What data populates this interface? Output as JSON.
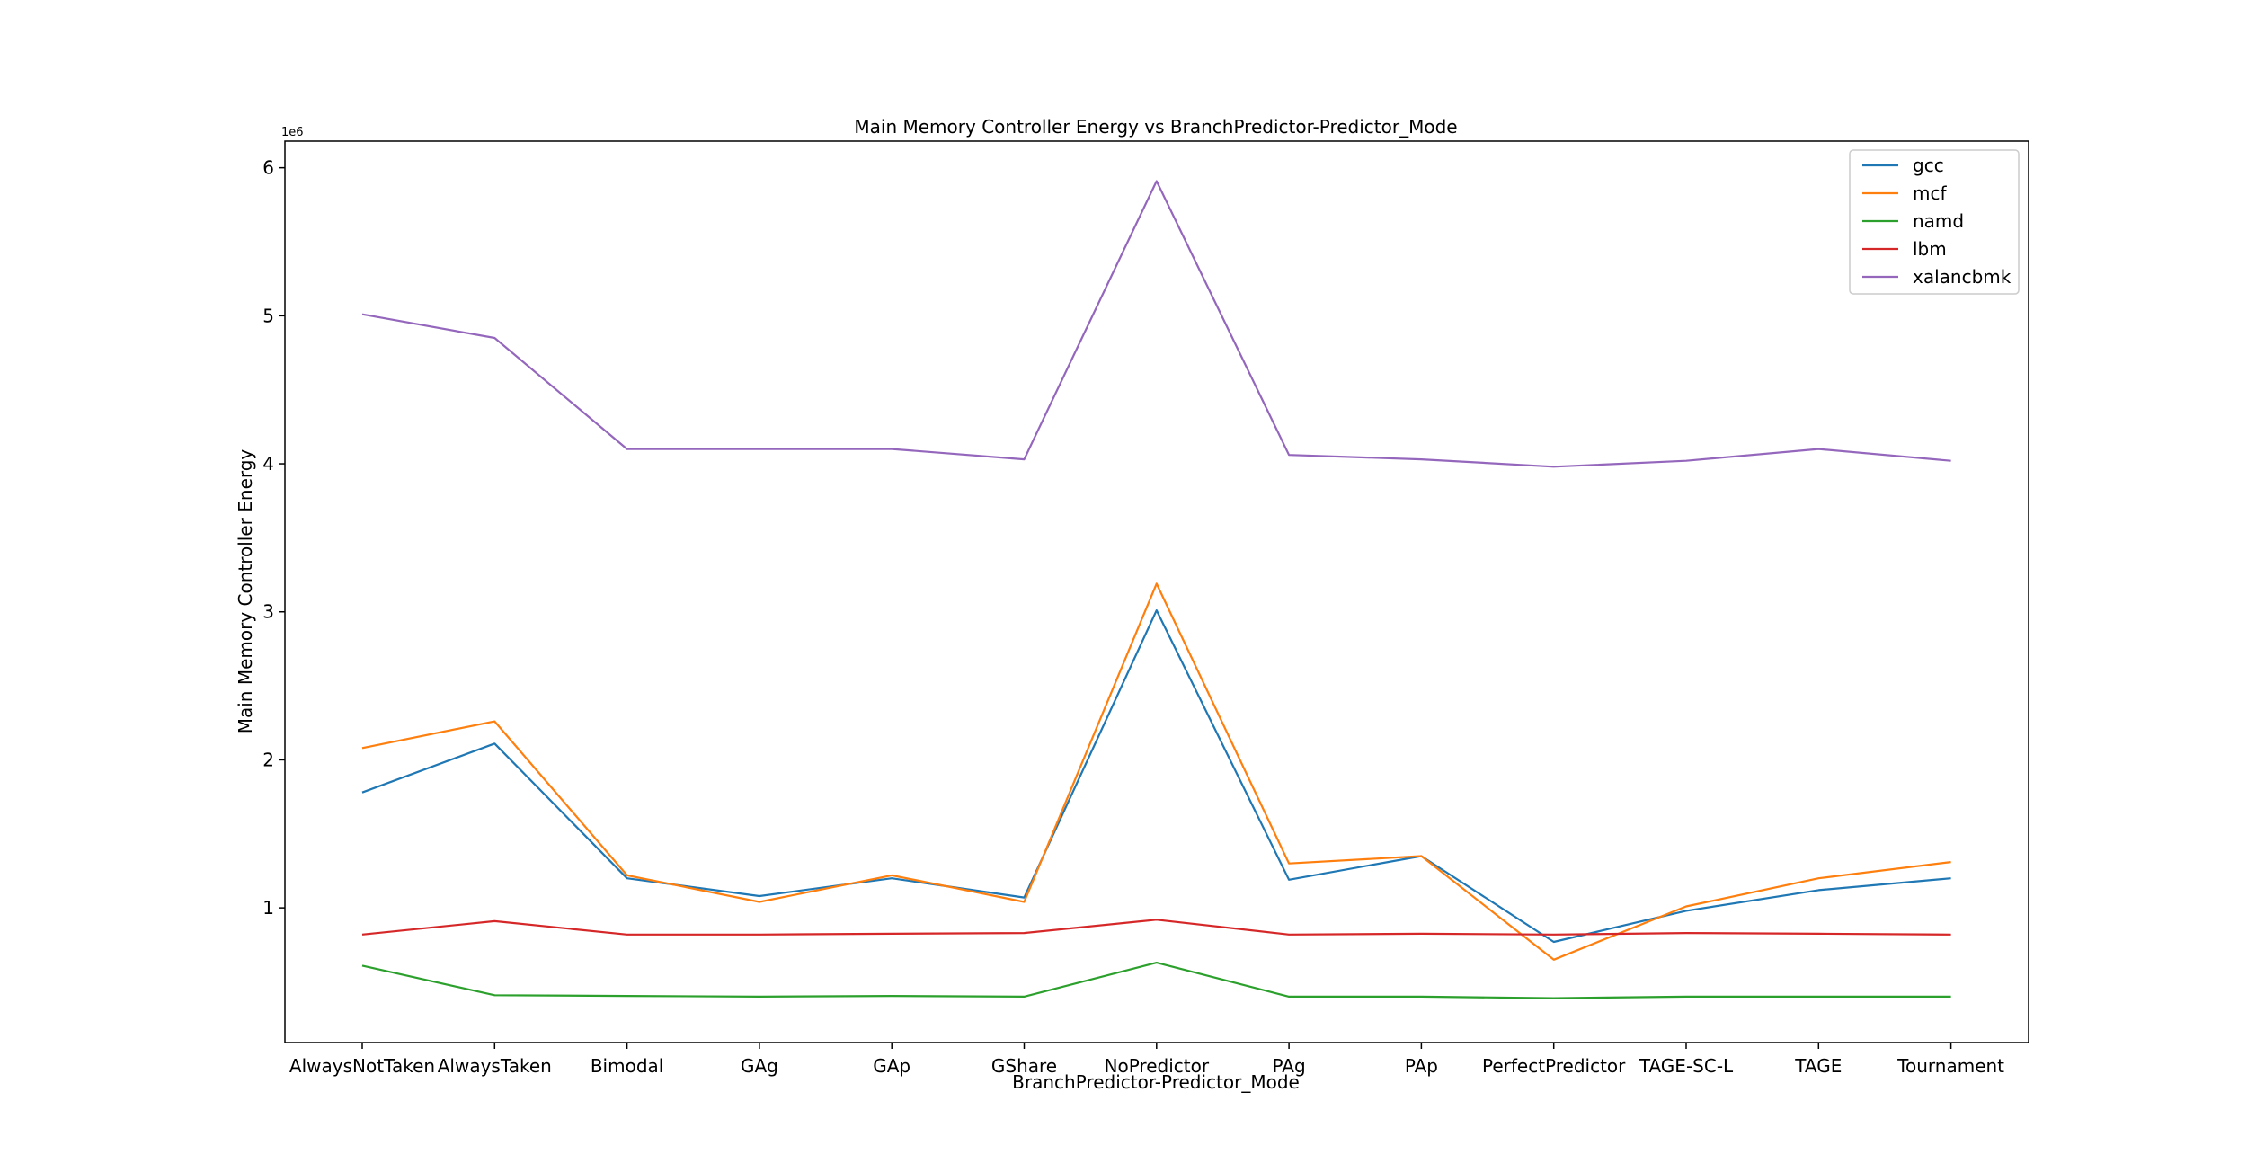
{
  "chart_data": {
    "type": "line",
    "title": "Main Memory Controller Energy vs BranchPredictor-Predictor_Mode",
    "xlabel": "BranchPredictor-Predictor_Mode",
    "ylabel": "Main Memory Controller Energy",
    "y_offset_label": "1e6",
    "y_scale": 1000000,
    "ylim": [
      0.09,
      6.18
    ],
    "yticks": [
      1,
      2,
      3,
      4,
      5,
      6
    ],
    "grid": false,
    "legend_position": "top-right",
    "categories": [
      "AlwaysNotTaken",
      "AlwaysTaken",
      "Bimodal",
      "GAg",
      "GAp",
      "GShare",
      "NoPredictor",
      "PAg",
      "PAp",
      "PerfectPredictor",
      "TAGE-SC-L",
      "TAGE",
      "Tournament"
    ],
    "series": [
      {
        "name": "gcc",
        "color": "#1f77b4",
        "values": [
          1.78,
          2.11,
          1.2,
          1.08,
          1.2,
          1.07,
          3.01,
          1.19,
          1.35,
          0.77,
          0.98,
          1.12,
          1.2
        ]
      },
      {
        "name": "mcf",
        "color": "#ff7f0e",
        "values": [
          2.08,
          2.26,
          1.22,
          1.04,
          1.22,
          1.04,
          3.19,
          1.3,
          1.35,
          0.65,
          1.01,
          1.2,
          1.31
        ]
      },
      {
        "name": "namd",
        "color": "#2ca02c",
        "values": [
          0.61,
          0.41,
          0.405,
          0.4,
          0.405,
          0.4,
          0.63,
          0.4,
          0.4,
          0.39,
          0.4,
          0.4,
          0.4
        ]
      },
      {
        "name": "lbm",
        "color": "#d62728",
        "values": [
          0.82,
          0.91,
          0.82,
          0.82,
          0.825,
          0.83,
          0.92,
          0.82,
          0.825,
          0.82,
          0.83,
          0.825,
          0.82
        ]
      },
      {
        "name": "xalancbmk",
        "color": "#9467bd",
        "values": [
          5.01,
          4.85,
          4.1,
          4.1,
          4.1,
          4.03,
          5.91,
          4.06,
          4.03,
          3.98,
          4.02,
          4.1,
          4.02
        ]
      }
    ]
  }
}
